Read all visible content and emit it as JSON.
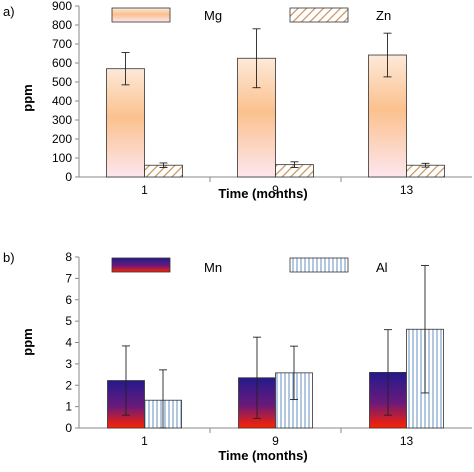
{
  "chart_data": [
    {
      "type": "bar",
      "panel_label": "a)",
      "title": "",
      "xlabel": "Time (months)",
      "ylabel": "ppm",
      "ylim": [
        0,
        900
      ],
      "yticks": [
        0,
        100,
        200,
        300,
        400,
        500,
        600,
        700,
        800,
        900
      ],
      "categories": [
        "1",
        "9",
        "13"
      ],
      "grid": false,
      "legend_placement": "top",
      "series": [
        {
          "name": "Mg",
          "values": [
            570,
            625,
            642
          ],
          "error": [
            85,
            155,
            115
          ],
          "fill": "gradient-peach",
          "colors": [
            "#fde4d3",
            "#fbc9a0",
            "#fadcb0"
          ]
        },
        {
          "name": "Zn",
          "values": [
            62,
            65,
            62
          ],
          "error": [
            12,
            15,
            10
          ],
          "fill": "hatch",
          "colors": [
            "#ffffff",
            "#c8925a"
          ]
        }
      ]
    },
    {
      "type": "bar",
      "panel_label": "b)",
      "title": "",
      "xlabel": "Time (months)",
      "ylabel": "ppm",
      "ylim": [
        0,
        8
      ],
      "yticks": [
        0,
        1,
        2,
        3,
        4,
        5,
        6,
        7,
        8
      ],
      "categories": [
        "1",
        "9",
        "13"
      ],
      "grid": false,
      "legend_placement": "top",
      "series": [
        {
          "name": "Mn",
          "values": [
            2.22,
            2.35,
            2.6
          ],
          "error": [
            1.62,
            1.9,
            2.0
          ],
          "fill": "gradient-navy-red",
          "colors": [
            "#2b1f86",
            "#ff2a00"
          ]
        },
        {
          "name": "Al",
          "values": [
            1.3,
            2.58,
            4.62
          ],
          "error": [
            1.42,
            1.25,
            2.98
          ],
          "fill": "vertical-stripes",
          "colors": [
            "#ffffff",
            "#7fa3d0"
          ]
        }
      ]
    }
  ]
}
